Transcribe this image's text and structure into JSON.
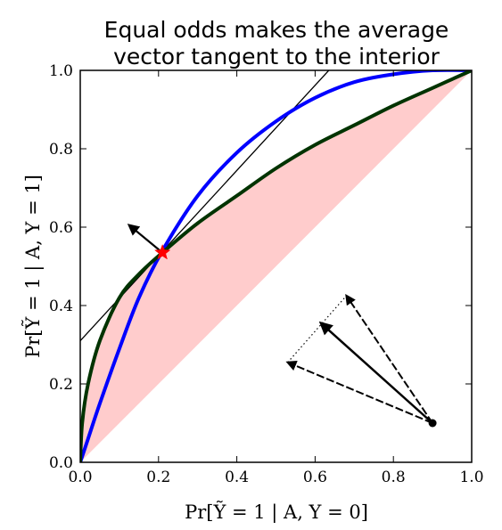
{
  "chart_data": {
    "type": "line",
    "title": [
      "Equal odds makes the average",
      "vector tangent to the interior"
    ],
    "xlabel": "Pr[Ỹ = 1 | A, Y = 0]",
    "ylabel": "Pr[Ỹ = 1 | A, Y = 1]",
    "xlim": [
      0.0,
      1.0
    ],
    "ylim": [
      0.0,
      1.0
    ],
    "xticks": [
      "0.0",
      "0.2",
      "0.4",
      "0.6",
      "0.8",
      "1.0"
    ],
    "yticks": [
      "0.0",
      "0.2",
      "0.4",
      "0.6",
      "0.8",
      "1.0"
    ],
    "grid": false,
    "colors": {
      "blue_curve": "#0000ff",
      "green_curve": "#003300",
      "fill": "#ffcccc",
      "star": "#ff0000",
      "lines": "#000000"
    },
    "series": [
      {
        "color": "blue",
        "x": [
          0.0,
          0.02,
          0.05,
          0.1,
          0.15,
          0.21,
          0.3,
          0.4,
          0.5,
          0.6,
          0.7,
          0.8,
          0.9,
          1.0
        ],
        "y": [
          0.0,
          0.06,
          0.15,
          0.29,
          0.42,
          0.54,
          0.68,
          0.79,
          0.87,
          0.93,
          0.97,
          0.99,
          1.0,
          1.0
        ]
      },
      {
        "color": "green",
        "x": [
          0.0,
          0.005,
          0.02,
          0.05,
          0.1,
          0.15,
          0.21,
          0.3,
          0.4,
          0.5,
          0.6,
          0.7,
          0.8,
          0.9,
          1.0
        ],
        "y": [
          0.0,
          0.1,
          0.2,
          0.31,
          0.42,
          0.48,
          0.535,
          0.61,
          0.68,
          0.75,
          0.81,
          0.86,
          0.91,
          0.955,
          1.0
        ]
      }
    ],
    "tangent_line": {
      "x": [
        0.0,
        0.635
      ],
      "y": [
        0.31,
        1.0
      ]
    },
    "fill_region": "between the green curve and the diagonal y = x",
    "marker": {
      "shape": "star",
      "x": 0.21,
      "y": 0.535
    },
    "normal_arrow": {
      "from": [
        0.21,
        0.535
      ],
      "to": [
        0.125,
        0.605
      ]
    },
    "vector_diagram": {
      "origin": [
        0.9,
        0.1
      ],
      "dashed_arrow_tips": [
        [
          0.53,
          0.255
        ],
        [
          0.68,
          0.425
        ]
      ],
      "average_arrow_tip": [
        0.615,
        0.355
      ],
      "dotted_segment": [
        [
          0.53,
          0.255
        ],
        [
          0.68,
          0.425
        ]
      ]
    }
  }
}
